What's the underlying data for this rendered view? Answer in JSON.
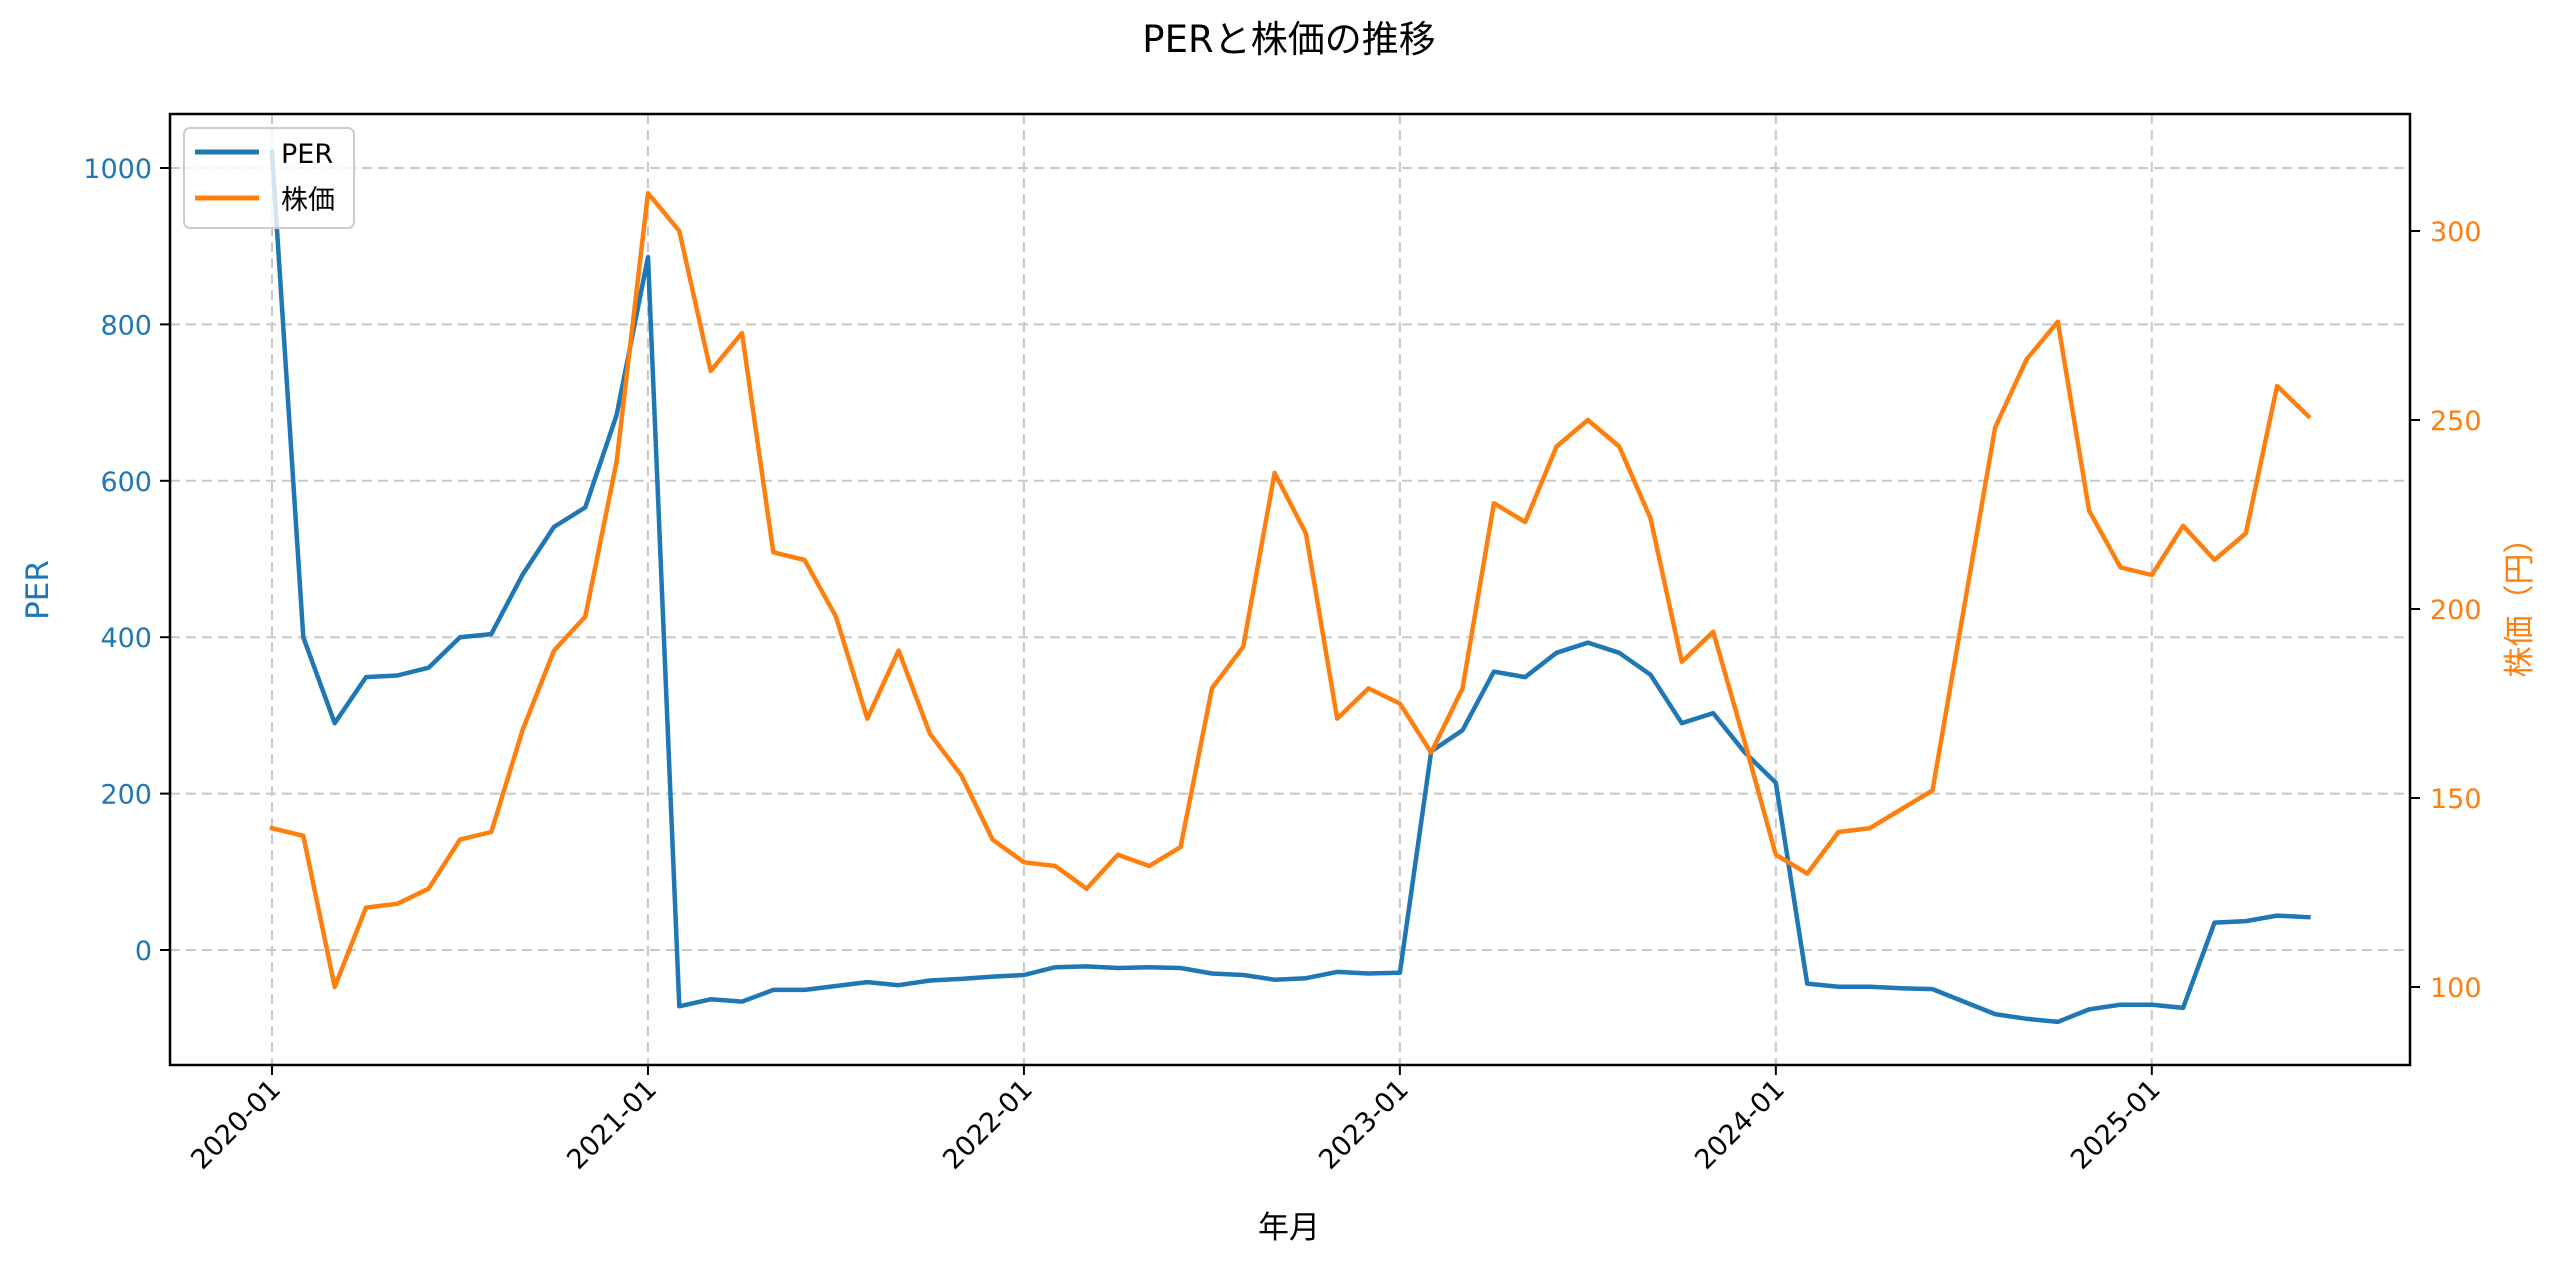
{
  "chart_data": {
    "type": "line",
    "title": "PERと株価の推移",
    "xlabel": "年月",
    "ylabel": "PER",
    "ylabel_right": "株価（円）",
    "x_tick_labels": [
      "2020-01",
      "2021-01",
      "2022-01",
      "2023-01",
      "2024-01",
      "2025-01"
    ],
    "y_ticks_left": [
      0,
      200,
      400,
      600,
      800,
      1000
    ],
    "y_ticks_right": [
      100,
      150,
      200,
      250,
      300
    ],
    "ylim_left": [
      -150,
      1070
    ],
    "ylim_right": [
      80,
      330
    ],
    "grid": true,
    "legend_position": "upper left",
    "x": [
      "2020-01",
      "2020-02",
      "2020-03",
      "2020-04",
      "2020-05",
      "2020-06",
      "2020-07",
      "2020-08",
      "2020-09",
      "2020-10",
      "2020-11",
      "2020-12",
      "2021-01",
      "2021-02",
      "2021-03",
      "2021-04",
      "2021-05",
      "2021-06",
      "2021-07",
      "2021-08",
      "2021-09",
      "2021-10",
      "2021-11",
      "2021-12",
      "2022-01",
      "2022-02",
      "2022-03",
      "2022-04",
      "2022-05",
      "2022-06",
      "2022-07",
      "2022-08",
      "2022-09",
      "2022-10",
      "2022-11",
      "2022-12",
      "2023-01",
      "2023-02",
      "2023-03",
      "2023-04",
      "2023-05",
      "2023-06",
      "2023-07",
      "2023-08",
      "2023-09",
      "2023-10",
      "2023-11",
      "2023-12",
      "2024-01",
      "2024-02",
      "2024-03",
      "2024-04",
      "2024-05",
      "2024-06",
      "2024-07",
      "2024-08",
      "2024-09",
      "2024-10",
      "2024-11",
      "2024-12",
      "2025-01",
      "2025-02",
      "2025-03",
      "2025-04",
      "2025-05",
      "2025-06"
    ],
    "series": [
      {
        "name": "PER",
        "axis": "left",
        "color": "#1f77b4",
        "values": [
          1020,
          400,
          290,
          349,
          351,
          361,
          400,
          404,
          480,
          541,
          566,
          684,
          886,
          -72,
          -63,
          -66,
          -51,
          -51,
          -46,
          -41,
          -45,
          -39,
          -37,
          -34,
          -32,
          -22,
          -21,
          -23,
          -22,
          -23,
          -30,
          -32,
          -38,
          -36,
          -28,
          -30,
          -29,
          254,
          281,
          356,
          349,
          380,
          393,
          380,
          352,
          290,
          303,
          253,
          214,
          -43,
          -47,
          -47,
          -49,
          -50,
          -66,
          -82,
          -88,
          -92,
          -76,
          -70,
          -70,
          -74,
          35,
          37,
          44,
          42
        ]
      },
      {
        "name": "株価",
        "axis": "right",
        "color": "#ff7f0e",
        "values": [
          142,
          140,
          100,
          121,
          122,
          126,
          139,
          141,
          168,
          189,
          198,
          239,
          310,
          300,
          263,
          273,
          215,
          213,
          198,
          171,
          189,
          167,
          156,
          139,
          133,
          132,
          126,
          135,
          132,
          137,
          179,
          190,
          236,
          220,
          171,
          179,
          175,
          162,
          179,
          228,
          223,
          243,
          250,
          243,
          224,
          186,
          194,
          165,
          135,
          130,
          141,
          142,
          147,
          152,
          200,
          248,
          266,
          276,
          226,
          211,
          209,
          222,
          213,
          220,
          259,
          251
        ]
      }
    ]
  },
  "colors": {
    "per": "#1f77b4",
    "price": "#ff7f0e",
    "grid": "#c8c8c8",
    "axis": "#000000"
  },
  "legend": {
    "items": [
      {
        "label": "PER"
      },
      {
        "label": "株価"
      }
    ]
  }
}
